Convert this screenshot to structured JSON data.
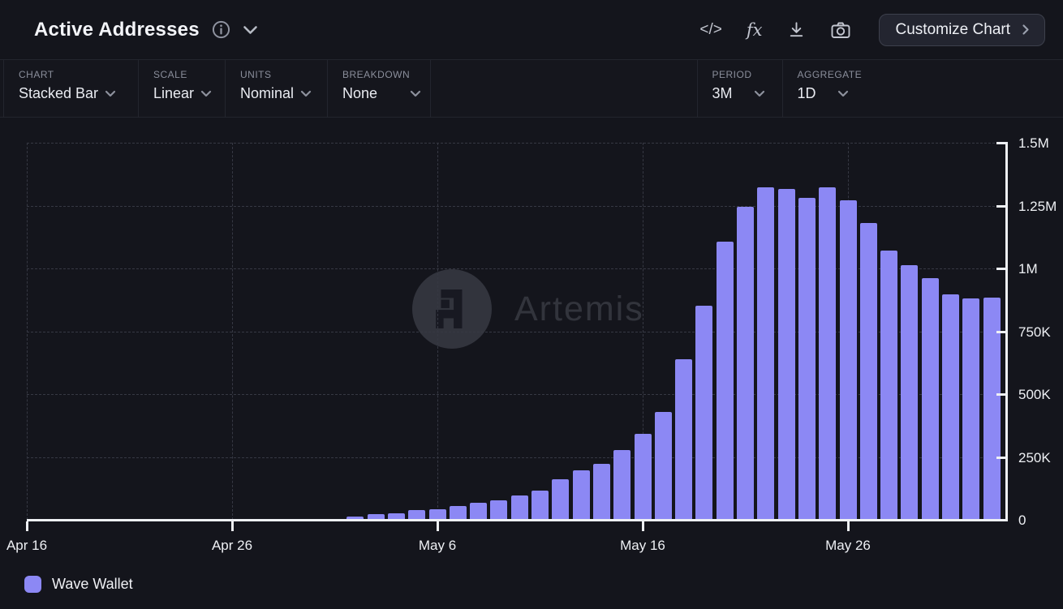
{
  "header": {
    "title": "Active Addresses",
    "customize_button": "Customize Chart",
    "code_icon_glyph": "</>",
    "formula_icon_glyph": "fx",
    "icons": [
      "info-icon",
      "chevron-down-icon",
      "code-icon",
      "formula-icon",
      "download-icon",
      "camera-icon"
    ]
  },
  "toolbar": {
    "controls": [
      {
        "label": "CHART",
        "value": "Stacked Bar"
      },
      {
        "label": "SCALE",
        "value": "Linear"
      },
      {
        "label": "UNITS",
        "value": "Nominal"
      },
      {
        "label": "BREAKDOWN",
        "value": "None"
      },
      {
        "label": "PERIOD",
        "value": "3M"
      },
      {
        "label": "AGGREGATE",
        "value": "1D"
      }
    ]
  },
  "chart_data": {
    "type": "bar",
    "title": "Active Addresses",
    "watermark": "Artemis",
    "x": [
      "May 2",
      "May 3",
      "May 4",
      "May 5",
      "May 6",
      "May 7",
      "May 8",
      "May 9",
      "May 10",
      "May 11",
      "May 12",
      "May 13",
      "May 14",
      "May 15",
      "May 16",
      "May 17",
      "May 18",
      "May 19",
      "May 20",
      "May 21",
      "May 22",
      "May 23",
      "May 24",
      "May 25",
      "May 26",
      "May 27",
      "May 28",
      "May 29",
      "May 30",
      "May 31",
      "Jun 1",
      "Jun 2"
    ],
    "series": [
      {
        "name": "Wave Wallet",
        "color": "#8c88f4",
        "values": [
          13000,
          24000,
          27000,
          39000,
          42000,
          55000,
          67000,
          78000,
          97000,
          116000,
          162000,
          196000,
          224000,
          278000,
          343000,
          429000,
          638000,
          851000,
          1105000,
          1245000,
          1323000,
          1315000,
          1280000,
          1321000,
          1270000,
          1181000,
          1070000,
          1013000,
          960000,
          897000,
          882000,
          884000
        ]
      }
    ],
    "xlabel": "",
    "ylabel": "",
    "ylim": [
      0,
      1500000
    ],
    "y_ticks": [
      0,
      250000,
      500000,
      750000,
      1000000,
      1250000,
      1500000
    ],
    "y_tick_labels": [
      "0",
      "250K",
      "500K",
      "750K",
      "1M",
      "1.25M",
      "1.5M"
    ],
    "x_tick_labels": [
      "Apr 16",
      "Apr 26",
      "May 6",
      "May 16",
      "May 26"
    ],
    "grid": "dashed",
    "legend_position": "bottom-left"
  },
  "legend": {
    "items": [
      {
        "label": "Wave Wallet",
        "color": "#8c88f4"
      }
    ]
  }
}
